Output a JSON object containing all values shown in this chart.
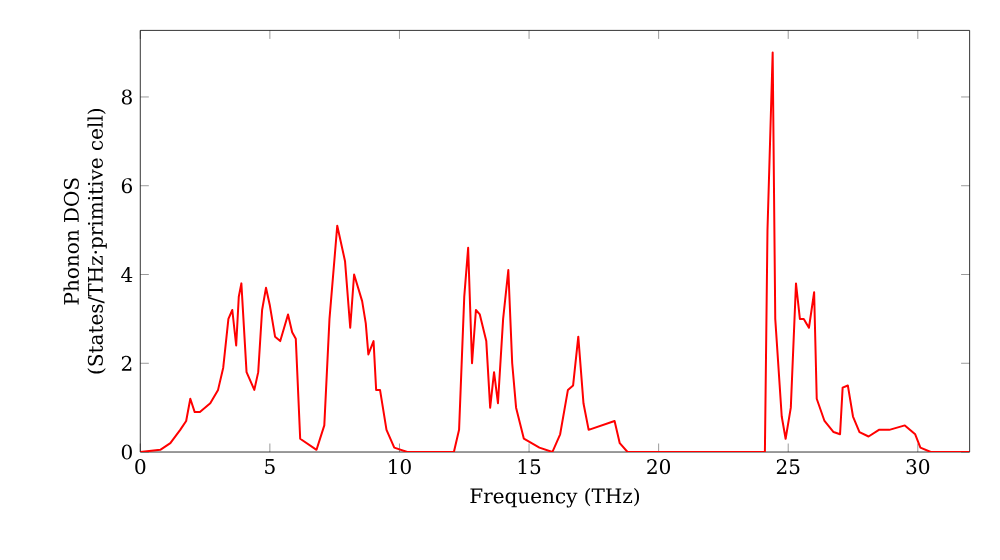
{
  "chart_data": {
    "type": "line",
    "xlabel": "Frequency (THz)",
    "ylabel": "Phonon DOS\n(States/THz·primitive cell)",
    "xlim": [
      0,
      32
    ],
    "ylim": [
      0,
      9.5
    ],
    "xticks": [
      0,
      5,
      10,
      15,
      20,
      25,
      30
    ],
    "yticks": [
      0,
      2,
      4,
      6,
      8
    ],
    "grid": false,
    "marker": "none",
    "line_style": "solid",
    "series": [
      {
        "color": "#ff0000",
        "x": [
          0,
          0.77,
          1.16,
          1.54,
          1.77,
          1.93,
          2.1,
          2.3,
          2.7,
          3.0,
          3.2,
          3.4,
          3.55,
          3.7,
          3.8,
          3.9,
          4.1,
          4.4,
          4.55,
          4.7,
          4.85,
          5.0,
          5.2,
          5.4,
          5.55,
          5.7,
          5.86,
          6.0,
          6.17,
          6.8,
          7.1,
          7.3,
          7.6,
          7.9,
          8.1,
          8.25,
          8.56,
          8.7,
          8.8,
          9.0,
          9.1,
          9.25,
          9.5,
          9.8,
          10.3,
          12.1,
          12.3,
          12.5,
          12.65,
          12.8,
          12.95,
          13.1,
          13.35,
          13.5,
          13.65,
          13.8,
          14.0,
          14.2,
          14.35,
          14.5,
          14.8,
          15.4,
          15.9,
          16.2,
          16.5,
          16.7,
          16.9,
          17.1,
          17.3,
          18.3,
          18.5,
          18.8,
          24.1,
          24.2,
          24.4,
          24.5,
          24.75,
          24.9,
          25.1,
          25.3,
          25.45,
          25.6,
          25.8,
          26.0,
          26.1,
          26.4,
          26.75,
          27.0,
          27.1,
          27.3,
          27.5,
          27.75,
          28.1,
          28.5,
          28.9,
          29.5,
          29.9,
          30.1,
          30.5,
          32
        ],
        "values": [
          0,
          0.05,
          0.2,
          0.5,
          0.7,
          1.2,
          0.9,
          0.9,
          1.1,
          1.4,
          1.9,
          3.0,
          3.2,
          2.4,
          3.5,
          3.8,
          1.8,
          1.4,
          1.8,
          3.2,
          3.7,
          3.3,
          2.6,
          2.5,
          2.8,
          3.1,
          2.7,
          2.55,
          0.3,
          0.05,
          0.6,
          3.0,
          5.1,
          4.3,
          2.8,
          4.0,
          3.4,
          2.9,
          2.2,
          2.5,
          1.4,
          1.4,
          0.5,
          0.1,
          0,
          0,
          0.5,
          3.5,
          4.6,
          2.0,
          3.2,
          3.1,
          2.5,
          1.0,
          1.8,
          1.1,
          3.0,
          4.1,
          2.0,
          1.0,
          0.3,
          0.1,
          0,
          0.4,
          1.4,
          1.5,
          2.6,
          1.1,
          0.5,
          0.7,
          0.2,
          0,
          0,
          5.0,
          9.0,
          3.0,
          0.8,
          0.3,
          1.0,
          3.8,
          3.0,
          3.0,
          2.8,
          3.6,
          1.2,
          0.7,
          0.45,
          0.4,
          1.45,
          1.5,
          0.8,
          0.45,
          0.35,
          0.5,
          0.5,
          0.6,
          0.4,
          0.1,
          0,
          0
        ]
      }
    ]
  }
}
